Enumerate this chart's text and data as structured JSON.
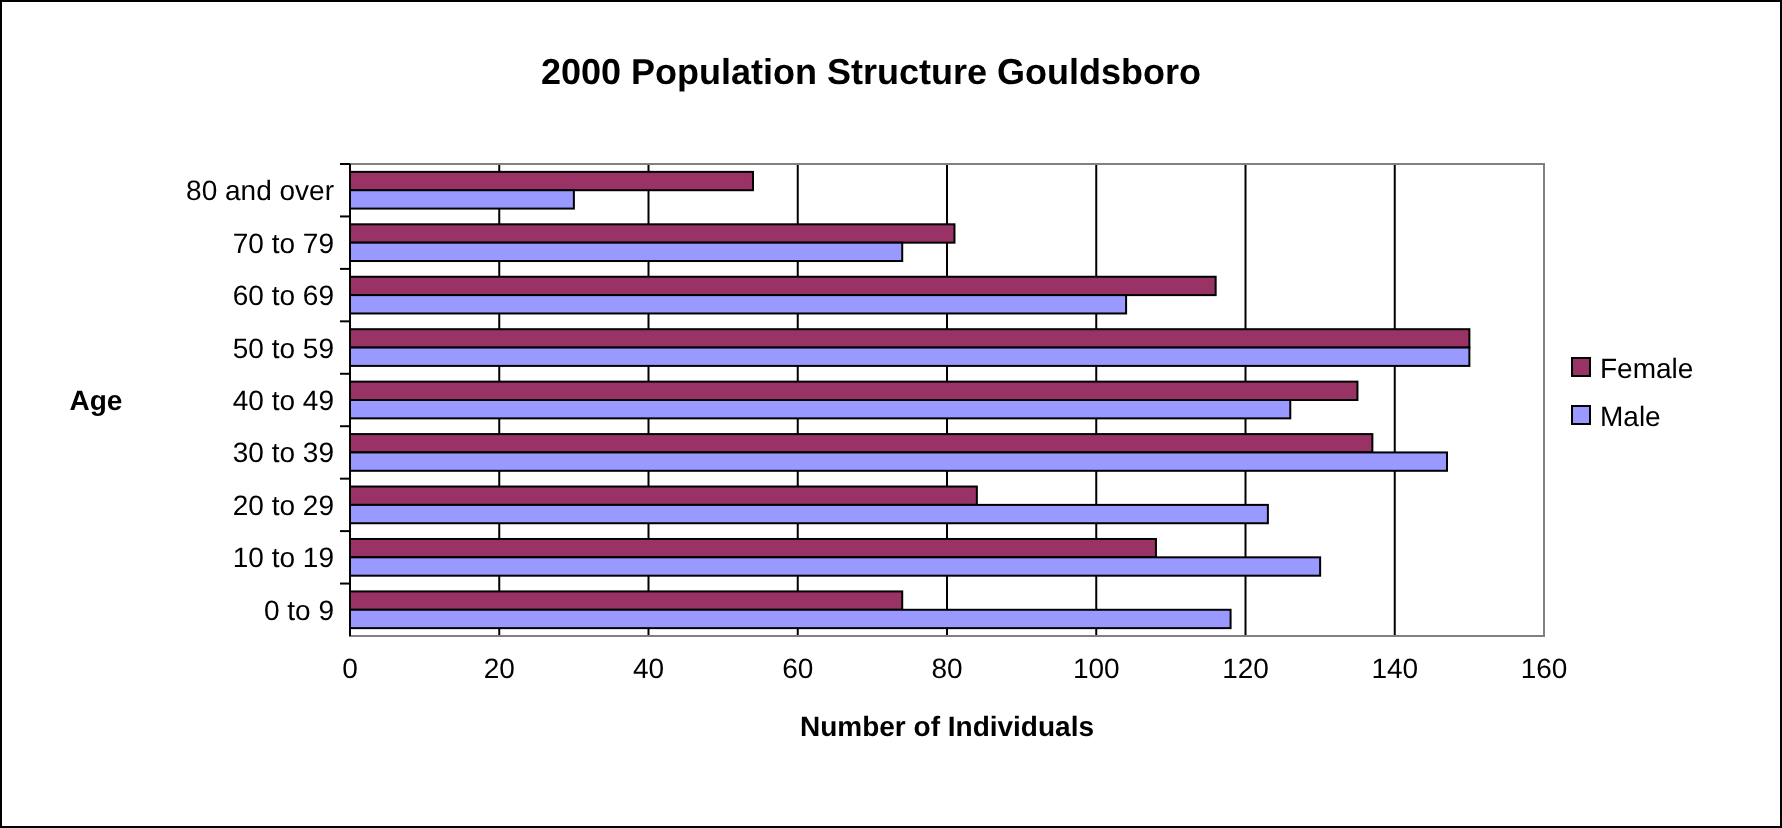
{
  "chart_data": {
    "type": "bar",
    "orientation": "horizontal",
    "title": "2000 Population Structure Gouldsboro",
    "xlabel": "Number of Individuals",
    "ylabel": "Age",
    "categories": [
      "80 and over",
      "70 to 79",
      "60 to 69",
      "50 to 59",
      "40 to 49",
      "30 to 39",
      "20 to 29",
      "10 to 19",
      "0 to 9"
    ],
    "series": [
      {
        "name": "Female",
        "color": "#993366",
        "values": [
          54,
          81,
          116,
          150,
          135,
          137,
          84,
          108,
          74
        ]
      },
      {
        "name": "Male",
        "color": "#9999ff",
        "values": [
          30,
          74,
          104,
          150,
          126,
          147,
          123,
          130,
          118
        ]
      }
    ],
    "xlim": [
      0,
      160
    ],
    "xticks": [
      0,
      20,
      40,
      60,
      80,
      100,
      120,
      140,
      160
    ],
    "grid": "x",
    "legend": "right"
  }
}
